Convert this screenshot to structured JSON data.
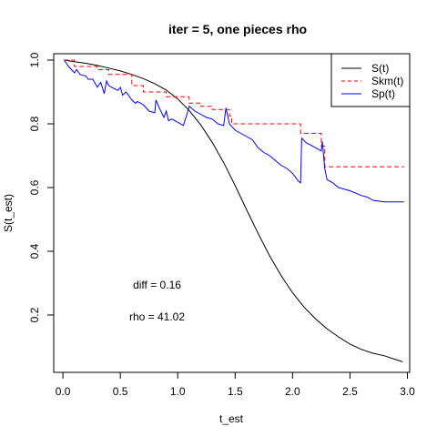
{
  "chart_data": {
    "type": "line",
    "title": "iter = 5, one pieces rho",
    "xlabel": "t_est",
    "ylabel": "S(t_est)",
    "xlim": [
      -0.08,
      3.02
    ],
    "ylim": [
      0.02,
      1.02
    ],
    "xticks": [
      0.0,
      0.5,
      1.0,
      1.5,
      2.0,
      2.5,
      3.0
    ],
    "xtick_labels": [
      "0.0",
      "0.5",
      "1.0",
      "1.5",
      "2.0",
      "2.5",
      "3.0"
    ],
    "yticks": [
      0.2,
      0.4,
      0.6,
      0.8,
      1.0
    ],
    "ytick_labels": [
      "0.2",
      "0.4",
      "0.6",
      "0.8",
      "1.0"
    ],
    "legend": {
      "placement": "top-right",
      "entries": [
        "S(t)",
        "Skm(t)",
        "Sp(t)"
      ]
    },
    "annotations": [
      {
        "text": "diff =  0.16",
        "x": 0.82,
        "y": 0.295
      },
      {
        "text": "rho =  41.02",
        "x": 0.82,
        "y": 0.195
      }
    ],
    "series": [
      {
        "name": "S(t)",
        "color": "#000000",
        "style": "solid",
        "x": [
          0.01,
          0.1,
          0.2,
          0.3,
          0.4,
          0.5,
          0.6,
          0.7,
          0.8,
          0.9,
          1.0,
          1.1,
          1.2,
          1.3,
          1.4,
          1.5,
          1.6,
          1.7,
          1.8,
          1.9,
          2.0,
          2.1,
          2.2,
          2.3,
          2.4,
          2.5,
          2.6,
          2.7,
          2.8,
          2.9,
          2.96
        ],
        "y": [
          1.0,
          0.995,
          0.99,
          0.983,
          0.975,
          0.966,
          0.955,
          0.942,
          0.926,
          0.906,
          0.878,
          0.842,
          0.797,
          0.742,
          0.678,
          0.606,
          0.53,
          0.456,
          0.386,
          0.324,
          0.27,
          0.225,
          0.188,
          0.157,
          0.131,
          0.109,
          0.092,
          0.08,
          0.072,
          0.06,
          0.053
        ]
      },
      {
        "name": "Skm(t)",
        "color": "#ff0000",
        "style": "dashed",
        "x": [
          0.01,
          0.1,
          0.1,
          0.3,
          0.3,
          0.4,
          0.4,
          0.6,
          0.6,
          0.7,
          0.7,
          0.9,
          0.9,
          1.1,
          1.1,
          1.2,
          1.2,
          1.3,
          1.3,
          1.45,
          1.45,
          1.47,
          1.47,
          2.07,
          2.07,
          2.25,
          2.25,
          2.28,
          2.28,
          2.97
        ],
        "y": [
          1.0,
          1.0,
          0.98,
          0.98,
          0.97,
          0.97,
          0.955,
          0.955,
          0.92,
          0.92,
          0.9,
          0.9,
          0.885,
          0.885,
          0.865,
          0.865,
          0.855,
          0.855,
          0.845,
          0.845,
          0.825,
          0.825,
          0.8,
          0.8,
          0.77,
          0.77,
          0.73,
          0.73,
          0.665,
          0.665
        ]
      },
      {
        "name": "Sp(t)",
        "color": "#0000ff",
        "style": "solid",
        "x": [
          0.01,
          0.05,
          0.1,
          0.12,
          0.15,
          0.2,
          0.22,
          0.26,
          0.3,
          0.33,
          0.36,
          0.38,
          0.4,
          0.45,
          0.48,
          0.5,
          0.52,
          0.55,
          0.6,
          0.63,
          0.65,
          0.7,
          0.75,
          0.8,
          0.81,
          0.84,
          0.88,
          0.9,
          0.92,
          0.95,
          1.0,
          1.05,
          1.08,
          1.1,
          1.15,
          1.2,
          1.25,
          1.3,
          1.35,
          1.4,
          1.42,
          1.45,
          1.5,
          1.55,
          1.6,
          1.65,
          1.7,
          1.75,
          1.8,
          1.85,
          1.9,
          1.95,
          2.0,
          2.05,
          2.07,
          2.08,
          2.12,
          2.15,
          2.2,
          2.25,
          2.26,
          2.28,
          2.3,
          2.35,
          2.4,
          2.5,
          2.6,
          2.65,
          2.7,
          2.8,
          2.97
        ],
        "y": [
          1.0,
          0.98,
          0.96,
          0.97,
          0.955,
          0.95,
          0.94,
          0.94,
          0.915,
          0.93,
          0.895,
          0.935,
          0.92,
          0.91,
          0.905,
          0.915,
          0.89,
          0.9,
          0.875,
          0.865,
          0.87,
          0.86,
          0.84,
          0.835,
          0.875,
          0.85,
          0.82,
          0.84,
          0.81,
          0.815,
          0.805,
          0.795,
          0.83,
          0.855,
          0.84,
          0.83,
          0.82,
          0.815,
          0.8,
          0.795,
          0.85,
          0.8,
          0.78,
          0.77,
          0.76,
          0.75,
          0.725,
          0.71,
          0.7,
          0.685,
          0.67,
          0.66,
          0.645,
          0.62,
          0.615,
          0.755,
          0.74,
          0.735,
          0.725,
          0.715,
          0.745,
          0.66,
          0.625,
          0.615,
          0.6,
          0.59,
          0.575,
          0.57,
          0.56,
          0.555,
          0.555
        ]
      }
    ]
  }
}
